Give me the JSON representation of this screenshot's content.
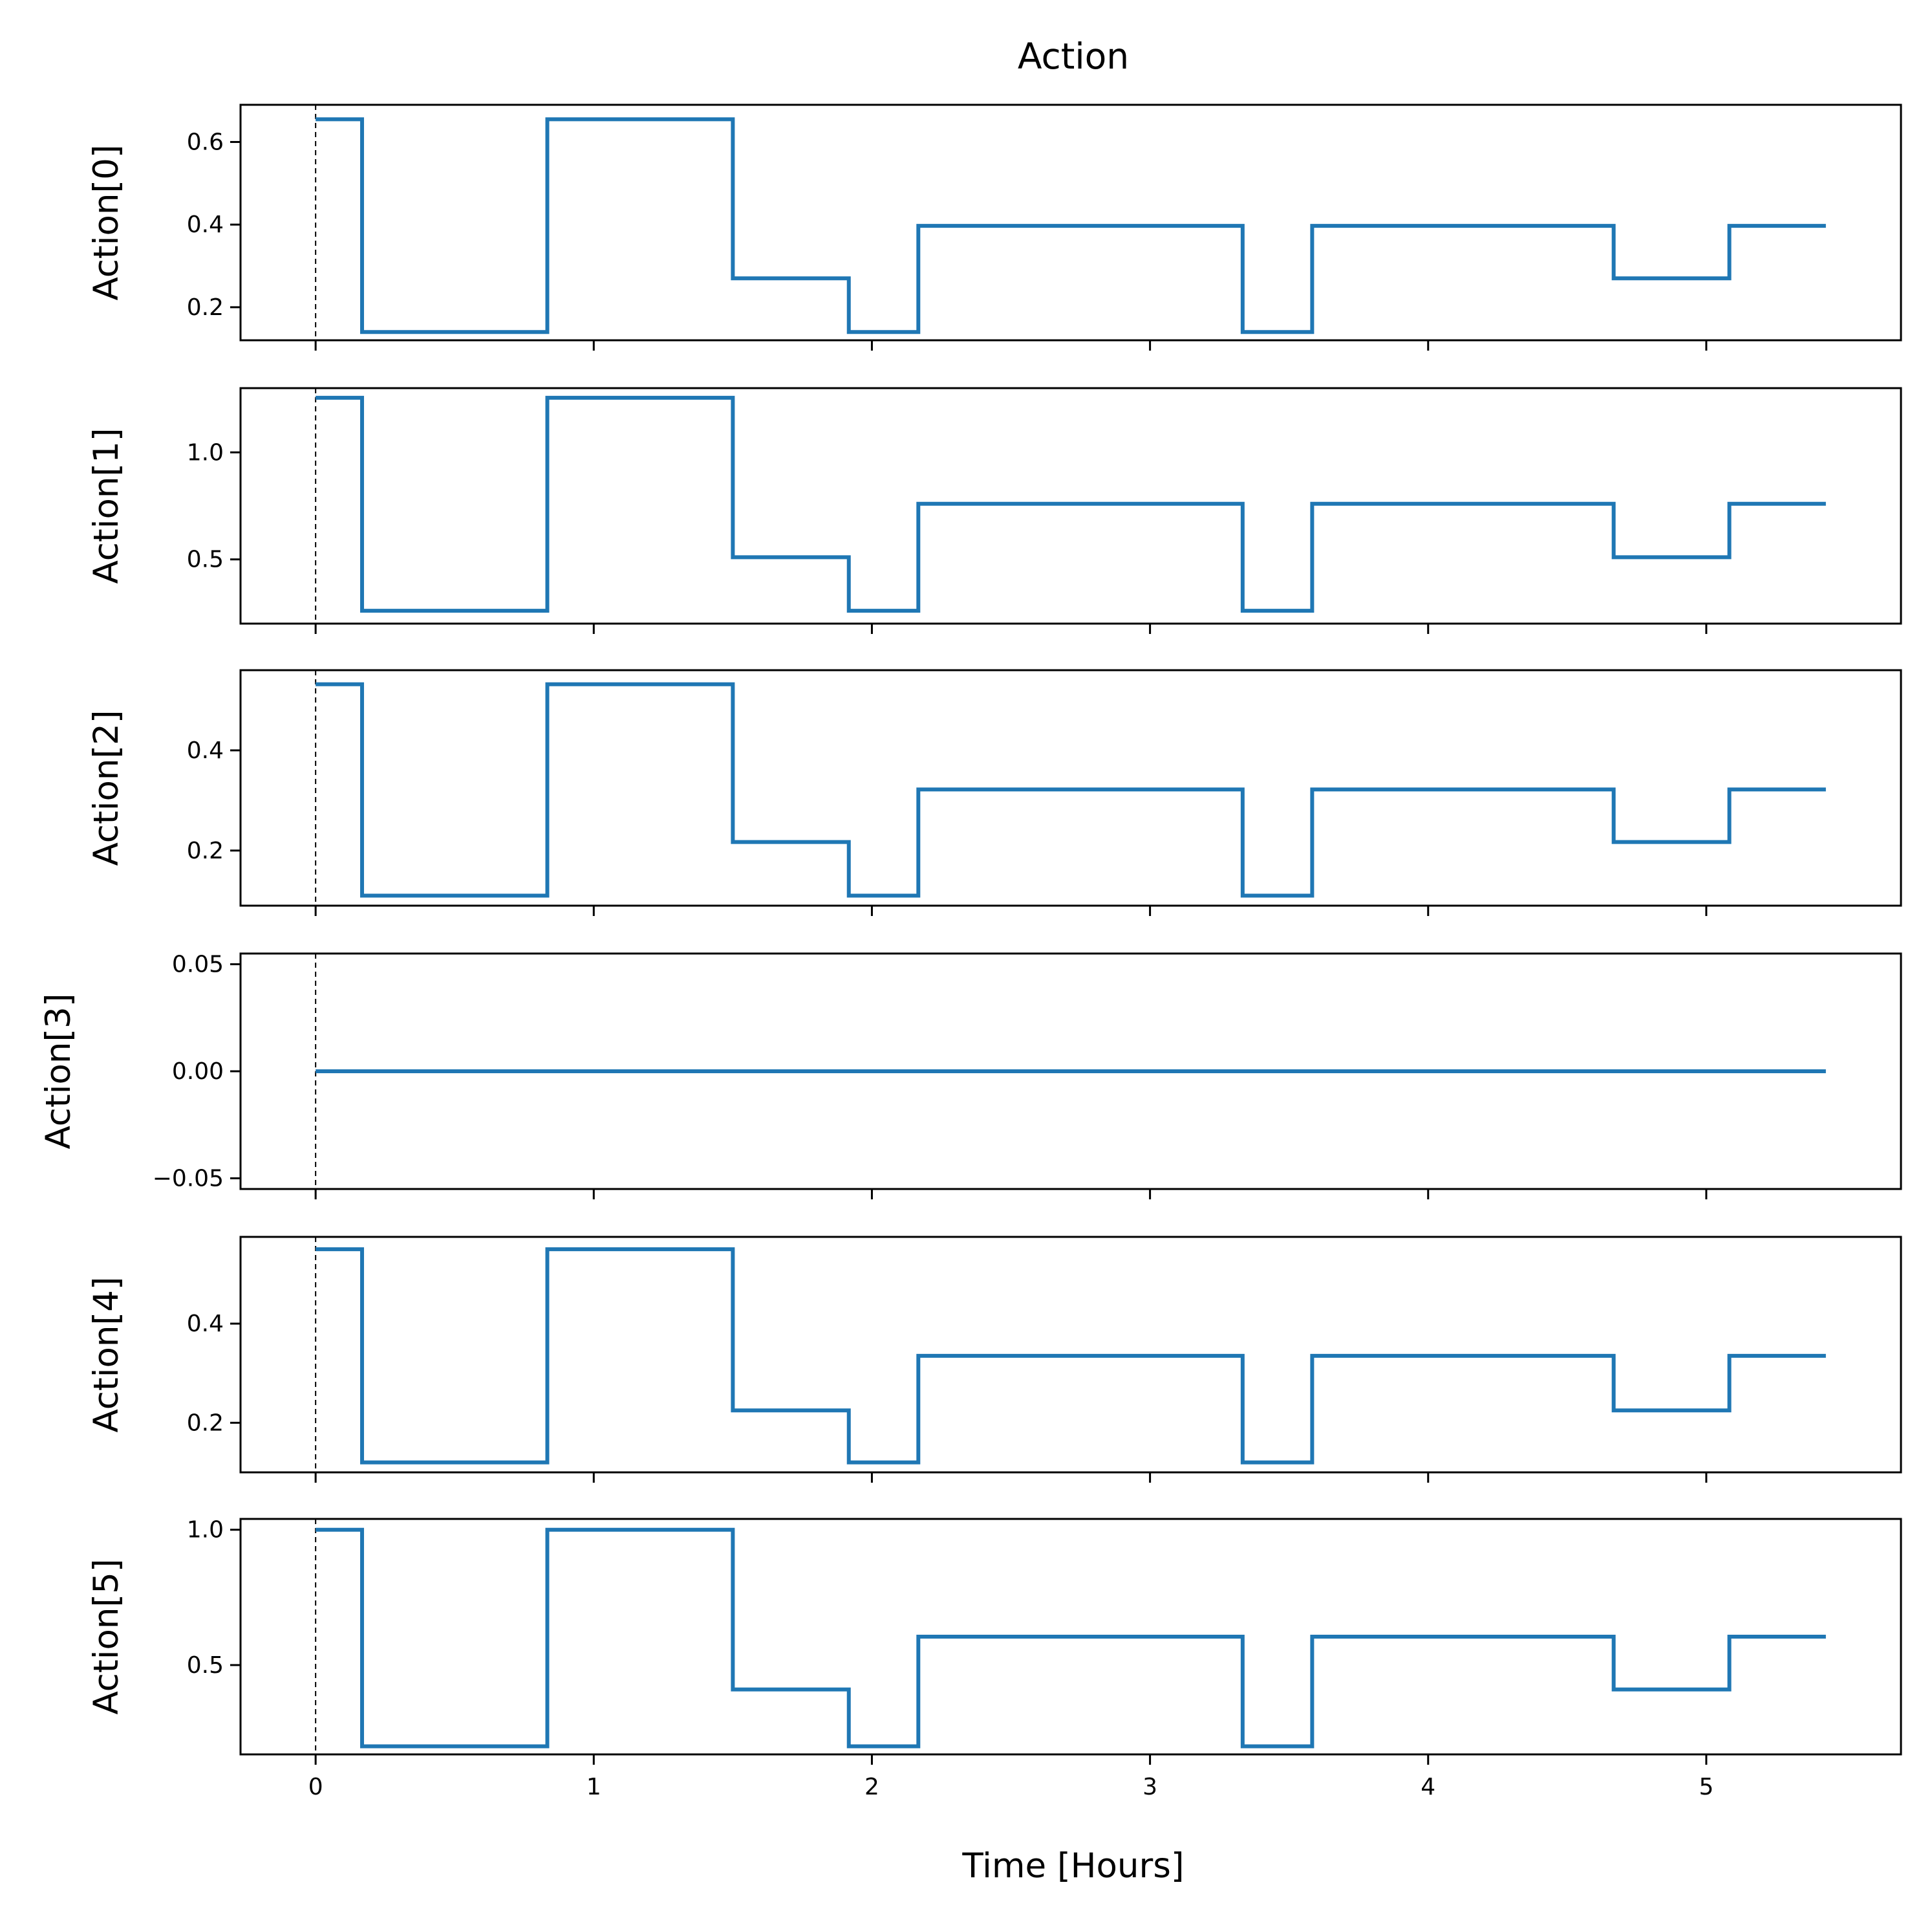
{
  "colors": {
    "series": "#1f77b4",
    "frame": "#000000",
    "marker_line": "#000000",
    "background": "#ffffff"
  },
  "chart_data": {
    "type": "line",
    "style": "step-post",
    "title": "Action",
    "xlabel": "Time [Hours]",
    "xlim": [
      -0.27,
      5.7
    ],
    "xticks": [
      0,
      1,
      2,
      3,
      4,
      5
    ],
    "xtick_labels": [
      "0",
      "1",
      "2",
      "3",
      "4",
      "5"
    ],
    "vertical_reference_line": {
      "x": 0,
      "style": "dashed"
    },
    "grid": false,
    "legend": "none",
    "step_times": [
      0,
      0.167,
      0.833,
      1.5,
      1.917,
      2.167,
      3.333,
      3.583,
      4.667,
      5.083,
      5.43
    ],
    "panels": [
      {
        "ylabel": "Action[0]",
        "ylim": [
          0.12,
          0.69
        ],
        "yticks": [
          0.2,
          0.4,
          0.6
        ],
        "ytick_labels": [
          "0.2",
          "0.4",
          "0.6"
        ],
        "values": [
          0.655,
          0.14,
          0.655,
          0.27,
          0.14,
          0.397,
          0.14,
          0.397,
          0.27,
          0.397,
          0.397
        ]
      },
      {
        "ylabel": "Action[1]",
        "ylim": [
          0.2,
          1.3
        ],
        "yticks": [
          0.5,
          1.0
        ],
        "ytick_labels": [
          "0.5",
          "1.0"
        ],
        "values": [
          1.255,
          0.26,
          1.255,
          0.51,
          0.26,
          0.76,
          0.26,
          0.76,
          0.51,
          0.76,
          0.76
        ]
      },
      {
        "ylabel": "Action[2]",
        "ylim": [
          0.09,
          0.56
        ],
        "yticks": [
          0.2,
          0.4
        ],
        "ytick_labels": [
          "0.2",
          "0.4"
        ],
        "values": [
          0.532,
          0.11,
          0.532,
          0.217,
          0.11,
          0.322,
          0.11,
          0.322,
          0.217,
          0.322,
          0.322
        ]
      },
      {
        "ylabel": "Action[3]",
        "ylim": [
          -0.055,
          0.055
        ],
        "yticks": [
          -0.05,
          0.0,
          0.05
        ],
        "ytick_labels": [
          "−0.05",
          "0.00",
          "0.05"
        ],
        "values": [
          0,
          0,
          0,
          0,
          0,
          0,
          0,
          0,
          0,
          0,
          0
        ]
      },
      {
        "ylabel": "Action[4]",
        "ylim": [
          0.1,
          0.575
        ],
        "yticks": [
          0.2,
          0.4
        ],
        "ytick_labels": [
          "0.2",
          "0.4"
        ],
        "values": [
          0.55,
          0.12,
          0.55,
          0.225,
          0.12,
          0.335,
          0.12,
          0.335,
          0.225,
          0.335,
          0.335
        ]
      },
      {
        "ylabel": "Action[5]",
        "ylim": [
          0.17,
          1.04
        ],
        "yticks": [
          0.5,
          1.0
        ],
        "ytick_labels": [
          "0.5",
          "1.0"
        ],
        "values": [
          1.0,
          0.2,
          1.0,
          0.41,
          0.2,
          0.605,
          0.2,
          0.605,
          0.41,
          0.605,
          0.605
        ]
      }
    ]
  }
}
